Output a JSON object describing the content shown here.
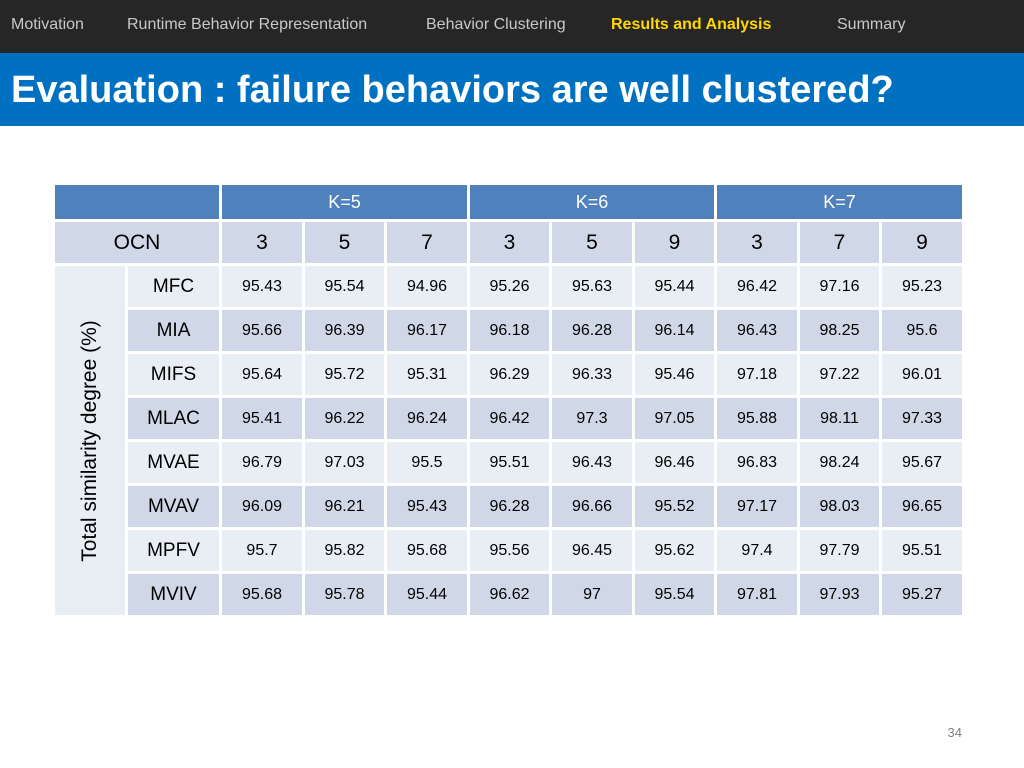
{
  "nav": {
    "items": [
      {
        "label": "Motivation",
        "active": false
      },
      {
        "label": "Runtime Behavior Representation",
        "active": false
      },
      {
        "label": "Behavior Clustering",
        "active": false
      },
      {
        "label": "Results and Analysis",
        "active": true
      },
      {
        "label": "Summary",
        "active": false
      }
    ]
  },
  "slide": {
    "title": "Evaluation : failure behaviors are well clustered?",
    "page_number": "34"
  },
  "table": {
    "k_headers": [
      "K=5",
      "K=6",
      "K=7"
    ],
    "ocn_label": "OCN",
    "ocn_values": [
      "3",
      "5",
      "7",
      "3",
      "5",
      "9",
      "3",
      "7",
      "9"
    ],
    "y_label": "Total similarity degree (%)",
    "rows": [
      {
        "method": "MFC",
        "values": [
          "95.43",
          "95.54",
          "94.96",
          "95.26",
          "95.63",
          "95.44",
          "96.42",
          "97.16",
          "95.23"
        ]
      },
      {
        "method": "MIA",
        "values": [
          "95.66",
          "96.39",
          "96.17",
          "96.18",
          "96.28",
          "96.14",
          "96.43",
          "98.25",
          "95.6"
        ]
      },
      {
        "method": "MIFS",
        "values": [
          "95.64",
          "95.72",
          "95.31",
          "96.29",
          "96.33",
          "95.46",
          "97.18",
          "97.22",
          "96.01"
        ]
      },
      {
        "method": "MLAC",
        "values": [
          "95.41",
          "96.22",
          "96.24",
          "96.42",
          "97.3",
          "97.05",
          "95.88",
          "98.11",
          "97.33"
        ]
      },
      {
        "method": "MVAE",
        "values": [
          "96.79",
          "97.03",
          "95.5",
          "95.51",
          "96.43",
          "96.46",
          "96.83",
          "98.24",
          "95.67"
        ]
      },
      {
        "method": "MVAV",
        "values": [
          "96.09",
          "96.21",
          "95.43",
          "96.28",
          "96.66",
          "95.52",
          "97.17",
          "98.03",
          "96.65"
        ]
      },
      {
        "method": "MPFV",
        "values": [
          "95.7",
          "95.82",
          "95.68",
          "95.56",
          "96.45",
          "95.62",
          "97.4",
          "97.79",
          "95.51"
        ]
      },
      {
        "method": "MVIV",
        "values": [
          "95.68",
          "95.78",
          "95.44",
          "96.62",
          "97",
          "95.54",
          "97.81",
          "97.93",
          "95.27"
        ]
      }
    ]
  },
  "colors": {
    "nav_background": "#262626",
    "nav_active_text": "#ffd700",
    "title_background": "#0070c0",
    "table_header": "#4f81bd",
    "table_band_dark": "#d0d8e8",
    "table_band_light": "#e9edf4"
  }
}
